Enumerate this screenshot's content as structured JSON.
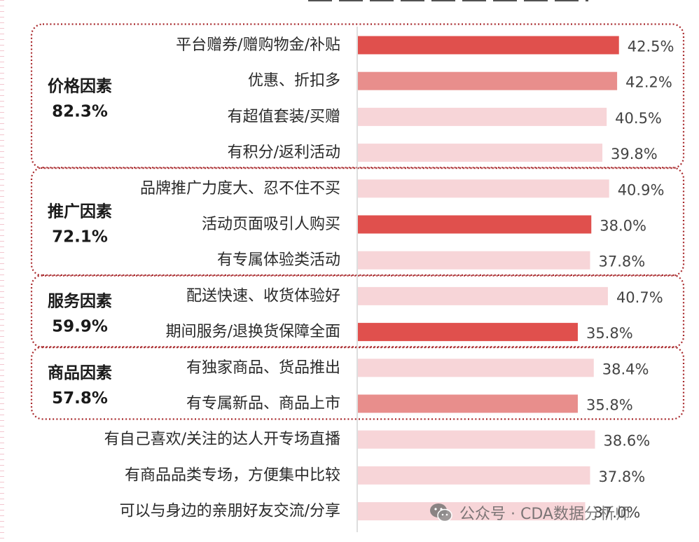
{
  "chart_data": {
    "type": "bar",
    "orientation": "horizontal",
    "colors": {
      "strong": "#e0504d",
      "medium": "#e88e8c",
      "light": "#f7d5d8",
      "group_border": "#a8282b",
      "axis": "#d4d4d4"
    },
    "categories": [
      "平台赠券/赠购物金/补贴",
      "优惠、折扣多",
      "有超值套装/买赠",
      "有积分/返利活动",
      "品牌推广力度大、忍不住不买",
      "活动页面吸引人购买",
      "有专属体验类活动",
      "配送快速、收货体验好",
      "期间服务/退换货保障全面",
      "有独家商品、货品推出",
      "有专属新品、商品上市",
      "有自己喜欢/关注的达人开专场直播",
      "有商品品类专场，方便集中比较",
      "可以与身边的亲朋好友交流/分享"
    ],
    "values": [
      42.5,
      42.2,
      40.5,
      39.8,
      40.9,
      38.0,
      37.8,
      40.7,
      35.8,
      38.4,
      35.8,
      38.6,
      37.8,
      37.0
    ],
    "value_labels": [
      "42.5%",
      "42.2%",
      "40.5%",
      "39.8%",
      "40.9%",
      "38.0%",
      "37.8%",
      "40.7%",
      "35.8%",
      "38.4%",
      "35.8%",
      "38.6%",
      "37.8%",
      "37.0%"
    ],
    "bar_tone": [
      "strong",
      "medium",
      "light",
      "light",
      "light",
      "strong",
      "light",
      "light",
      "strong",
      "light",
      "medium",
      "light",
      "light",
      "light"
    ],
    "groups": [
      {
        "name": "价格因素",
        "total": "82.3%",
        "first": 0,
        "last": 3
      },
      {
        "name": "推广因素",
        "total": "72.1%",
        "first": 4,
        "last": 6
      },
      {
        "name": "服务因素",
        "total": "59.9%",
        "first": 7,
        "last": 8
      },
      {
        "name": "商品因素",
        "total": "57.8%",
        "first": 9,
        "last": 10
      }
    ]
  },
  "watermark": {
    "icon": "wechat-icon",
    "text": "公众号 · CDA数据分析师"
  }
}
